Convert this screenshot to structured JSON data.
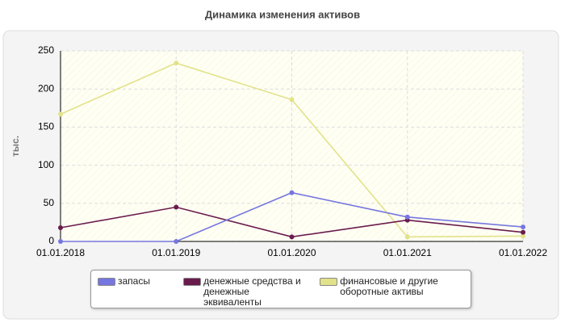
{
  "chart_data": {
    "type": "line",
    "title": "Динамика изменения активов",
    "y_label": "тыс.",
    "categories": [
      "01.01.2018",
      "01.01.2019",
      "01.01.2020",
      "01.01.2021",
      "01.01.2022"
    ],
    "series": [
      {
        "name": "запасы",
        "color": "#7676e0",
        "values": [
          0,
          0,
          64,
          32,
          19
        ]
      },
      {
        "name": "денежные средства и денежные эквиваленты",
        "color": "#6a1b4d",
        "values": [
          18,
          45,
          6,
          28,
          12
        ]
      },
      {
        "name": "финансовые и другие оборотные активы",
        "color": "#e2e28a",
        "values": [
          167,
          234,
          186,
          6,
          7
        ]
      }
    ],
    "ylim": [
      0,
      250
    ],
    "yticks": [
      0,
      50,
      100,
      150,
      200,
      250
    ],
    "grid": true
  }
}
